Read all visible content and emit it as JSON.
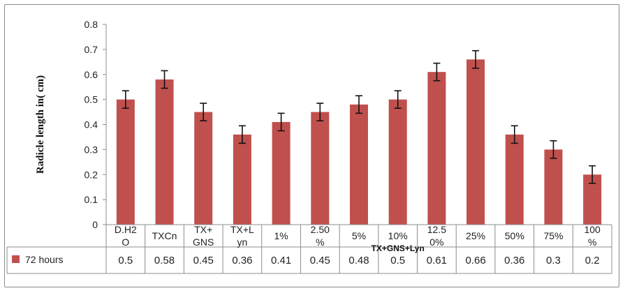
{
  "chart_data": {
    "type": "bar",
    "title": "",
    "ylabel": "Radicle length in( cm)",
    "xlabel": "",
    "ylim": [
      0,
      0.8
    ],
    "yticks": [
      "0",
      "0.1",
      "0.2",
      "0.3",
      "0.4",
      "0.5",
      "0.6",
      "0.7",
      "0.8"
    ],
    "categories": [
      [
        "D.H2",
        "O"
      ],
      [
        "TXCn"
      ],
      [
        "TX+",
        "GNS"
      ],
      [
        "TX+L",
        "yn"
      ],
      [
        "1%"
      ],
      [
        "2.50",
        "%"
      ],
      [
        "5%"
      ],
      [
        "10%"
      ],
      [
        "12.5",
        "0%"
      ],
      [
        "25%"
      ],
      [
        "50%"
      ],
      [
        "75%"
      ],
      [
        "100",
        "%"
      ]
    ],
    "group_label": "TX+GNS+Lyn",
    "series": [
      {
        "name": "72 hours",
        "color": "#c0504d",
        "values": [
          0.5,
          0.58,
          0.45,
          0.36,
          0.41,
          0.45,
          0.48,
          0.5,
          0.61,
          0.66,
          0.36,
          0.3,
          0.2
        ],
        "value_labels": [
          "0.5",
          "0.58",
          "0.45",
          "0.36",
          "0.41",
          "0.45",
          "0.48",
          "0.5",
          "0.61",
          "0.66",
          "0.36",
          "0.3",
          "0.2"
        ],
        "error": 0.035
      }
    ],
    "grid": false,
    "legend": "bottom-left data table"
  }
}
